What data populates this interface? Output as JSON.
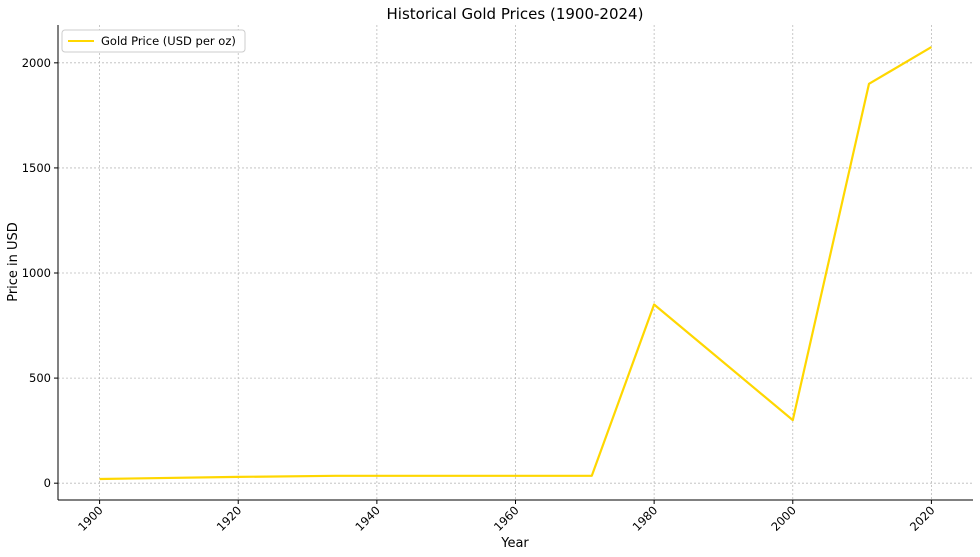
{
  "chart_data": {
    "type": "line",
    "title": "Historical Gold Prices (1900-2024)",
    "xlabel": "Year",
    "ylabel": "Price in USD",
    "xlim": [
      1894,
      2026
    ],
    "ylim": [
      -80,
      2180
    ],
    "x_ticks": [
      1900,
      1920,
      1940,
      1960,
      1980,
      2000,
      2020
    ],
    "y_ticks": [
      0,
      500,
      1000,
      1500,
      2000
    ],
    "grid": true,
    "legend": {
      "position": "top-left",
      "entries": [
        "Gold Price (USD per oz)"
      ]
    },
    "series": [
      {
        "name": "Gold Price (USD per oz)",
        "color": "#FFD700",
        "x": [
          1900,
          1920,
          1934,
          1971,
          1980,
          2000,
          2011,
          2020
        ],
        "y": [
          20,
          30,
          35,
          35,
          850,
          300,
          1900,
          2075
        ]
      }
    ]
  }
}
